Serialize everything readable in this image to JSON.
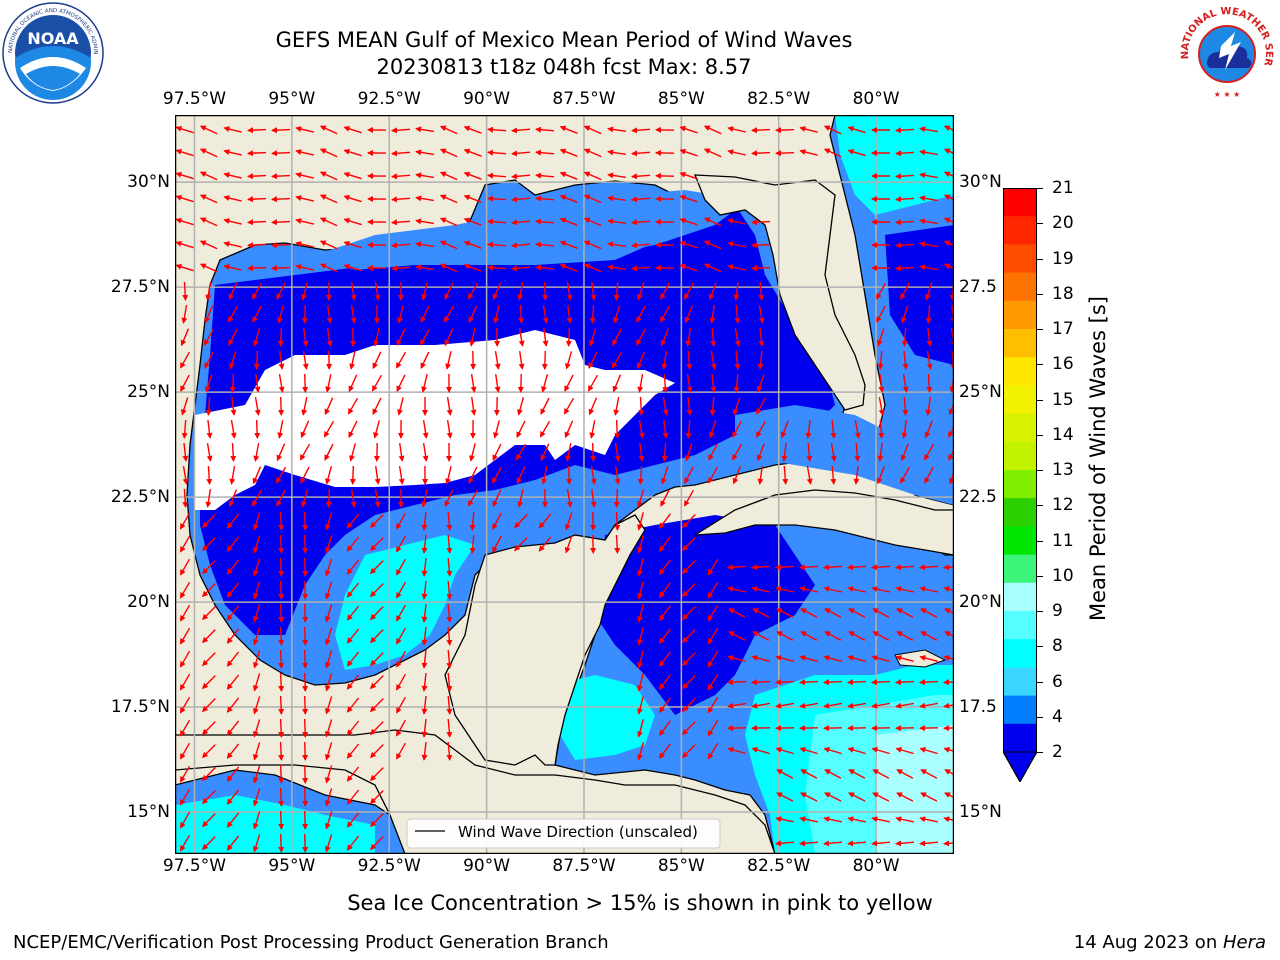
{
  "title": {
    "line1": "GEFS MEAN Gulf of Mexico Mean Period of Wind Waves",
    "line2": "20230813 t18z 048h fcst   Max: 8.57"
  },
  "logos": {
    "left": "NOAA",
    "left_ring": "NATIONAL OCEANIC AND ATMOSPHERIC ADMINISTRATION · U.S. DEPARTMENT OF COMMERCE",
    "right_ring": "NATIONAL WEATHER SERVICE"
  },
  "map": {
    "lon_ticks": [
      "97.5°W",
      "95°W",
      "92.5°W",
      "90°W",
      "87.5°W",
      "85°W",
      "82.5°W",
      "80°W"
    ],
    "lon_values": [
      -97.5,
      -95,
      -92.5,
      -90,
      -87.5,
      -85,
      -82.5,
      -80
    ],
    "lat_ticks": [
      "30°N",
      "27.5°N",
      "25°N",
      "22.5°N",
      "20°N",
      "17.5°N",
      "15°N"
    ],
    "lat_values": [
      30,
      27.5,
      25,
      22.5,
      20,
      17.5,
      15
    ],
    "right_lat_ticks": [
      "30°N",
      "27.5",
      "25°N",
      "22.5",
      "20°N",
      "17.5",
      "15°N"
    ],
    "extent": {
      "lon_min": -98,
      "lon_max": -78,
      "lat_min": 14,
      "lat_max": 31.6
    },
    "legend_label": "Wind Wave Direction (unscaled)",
    "colors": {
      "land": "#efecdc",
      "ocean_nodata": "#ffffff",
      "arrow": "#ff0000",
      "grid": "#b0b0b0"
    }
  },
  "colorbar": {
    "label": "Mean Period of Wind Waves [s]",
    "ticks": [
      "21",
      "20",
      "19",
      "18",
      "17",
      "16",
      "15",
      "14",
      "13",
      "12",
      "11",
      "10",
      "9",
      "8",
      "6",
      "4",
      "2"
    ],
    "colors": [
      "#ff0000",
      "#ff2600",
      "#ff4d00",
      "#ff7300",
      "#ff9900",
      "#ffbf00",
      "#ffe600",
      "#f2f200",
      "#d9f200",
      "#c2f200",
      "#80ee00",
      "#2ad000",
      "#00e600",
      "#3cf57a",
      "#aaffff",
      "#55ffff",
      "#00ffff",
      "#3ad6ff",
      "#0080ff",
      "#0000ee"
    ]
  },
  "sea_ice_note": "Sea Ice Concentration > 15% is shown in pink to yellow",
  "footer": {
    "left": "NCEP/EMC/Verification Post Processing Product Generation Branch",
    "right_prefix": "14 Aug 2023 on ",
    "right_machine": "Hera"
  }
}
